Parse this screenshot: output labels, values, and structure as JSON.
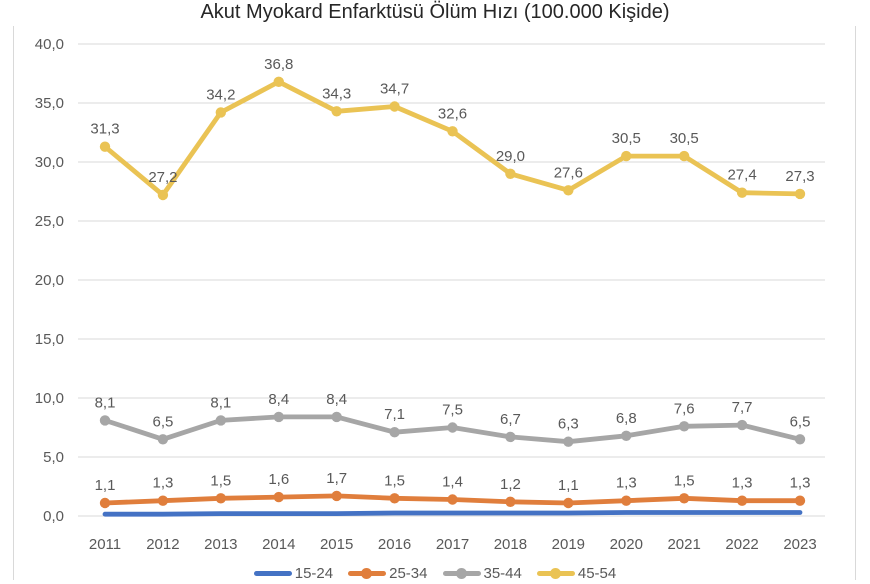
{
  "chart_data": {
    "type": "line",
    "title": "Akut Myokard Enfarktüsü Ölüm Hızı (100.000 Kişide)",
    "x": [
      "2011",
      "2012",
      "2013",
      "2014",
      "2015",
      "2016",
      "2017",
      "2018",
      "2019",
      "2020",
      "2021",
      "2022",
      "2023"
    ],
    "y_axis": {
      "min": 0,
      "max": 40,
      "tick_step": 5,
      "decimal_separator": ",",
      "ticks": [
        {
          "value": 40,
          "label": "40,0"
        },
        {
          "value": 35,
          "label": "35,0"
        },
        {
          "value": 30,
          "label": "30,0"
        },
        {
          "value": 25,
          "label": "25,0"
        },
        {
          "value": 20,
          "label": "20,0"
        },
        {
          "value": 15,
          "label": "15,0"
        },
        {
          "value": 10,
          "label": "10,0"
        },
        {
          "value": 5,
          "label": "5,0"
        },
        {
          "value": 0,
          "label": "0,0"
        }
      ]
    },
    "grid": "horizontal",
    "legend_position": "bottom",
    "series": [
      {
        "name": "15-24",
        "color": "#4472C4",
        "marker": false,
        "values": [
          0.15,
          0.15,
          0.2,
          0.2,
          0.2,
          0.25,
          0.25,
          0.25,
          0.25,
          0.3,
          0.3,
          0.3,
          0.3
        ],
        "labels": null
      },
      {
        "name": "25-34",
        "color": "#E07E3C",
        "marker": true,
        "values": [
          1.1,
          1.3,
          1.5,
          1.6,
          1.7,
          1.5,
          1.4,
          1.2,
          1.1,
          1.3,
          1.5,
          1.3,
          1.3
        ],
        "labels": [
          "1,1",
          "1,3",
          "1,5",
          "1,6",
          "1,7",
          "1,5",
          "1,4",
          "1,2",
          "1,1",
          "1,3",
          "1,5",
          "1,3",
          "1,3"
        ]
      },
      {
        "name": "35-44",
        "color": "#A6A6A6",
        "marker": true,
        "values": [
          8.1,
          6.5,
          8.1,
          8.4,
          8.4,
          7.1,
          7.5,
          6.7,
          6.3,
          6.8,
          7.6,
          7.7,
          6.5
        ],
        "labels": [
          "8,1",
          "6,5",
          "8,1",
          "8,4",
          "8,4",
          "7,1",
          "7,5",
          "6,7",
          "6,3",
          "6,8",
          "7,6",
          "7,7",
          "6,5"
        ]
      },
      {
        "name": "45-54",
        "color": "#EAC354",
        "marker": true,
        "values": [
          31.3,
          27.2,
          34.2,
          36.8,
          34.3,
          34.7,
          32.6,
          29.0,
          27.6,
          30.5,
          30.5,
          27.4,
          27.3
        ],
        "labels": [
          "31,3",
          "27,2",
          "34,2",
          "36,8",
          "34,3",
          "34,7",
          "32,6",
          "29,0",
          "27,6",
          "30,5",
          "30,5",
          "27,4",
          "27,3"
        ]
      }
    ],
    "style": {
      "grid_color": "#D9D9D9",
      "border_color": "#D9D9D9",
      "axis_text_color": "#595959",
      "data_label_color": "#595959",
      "title_color": "#262626"
    }
  }
}
